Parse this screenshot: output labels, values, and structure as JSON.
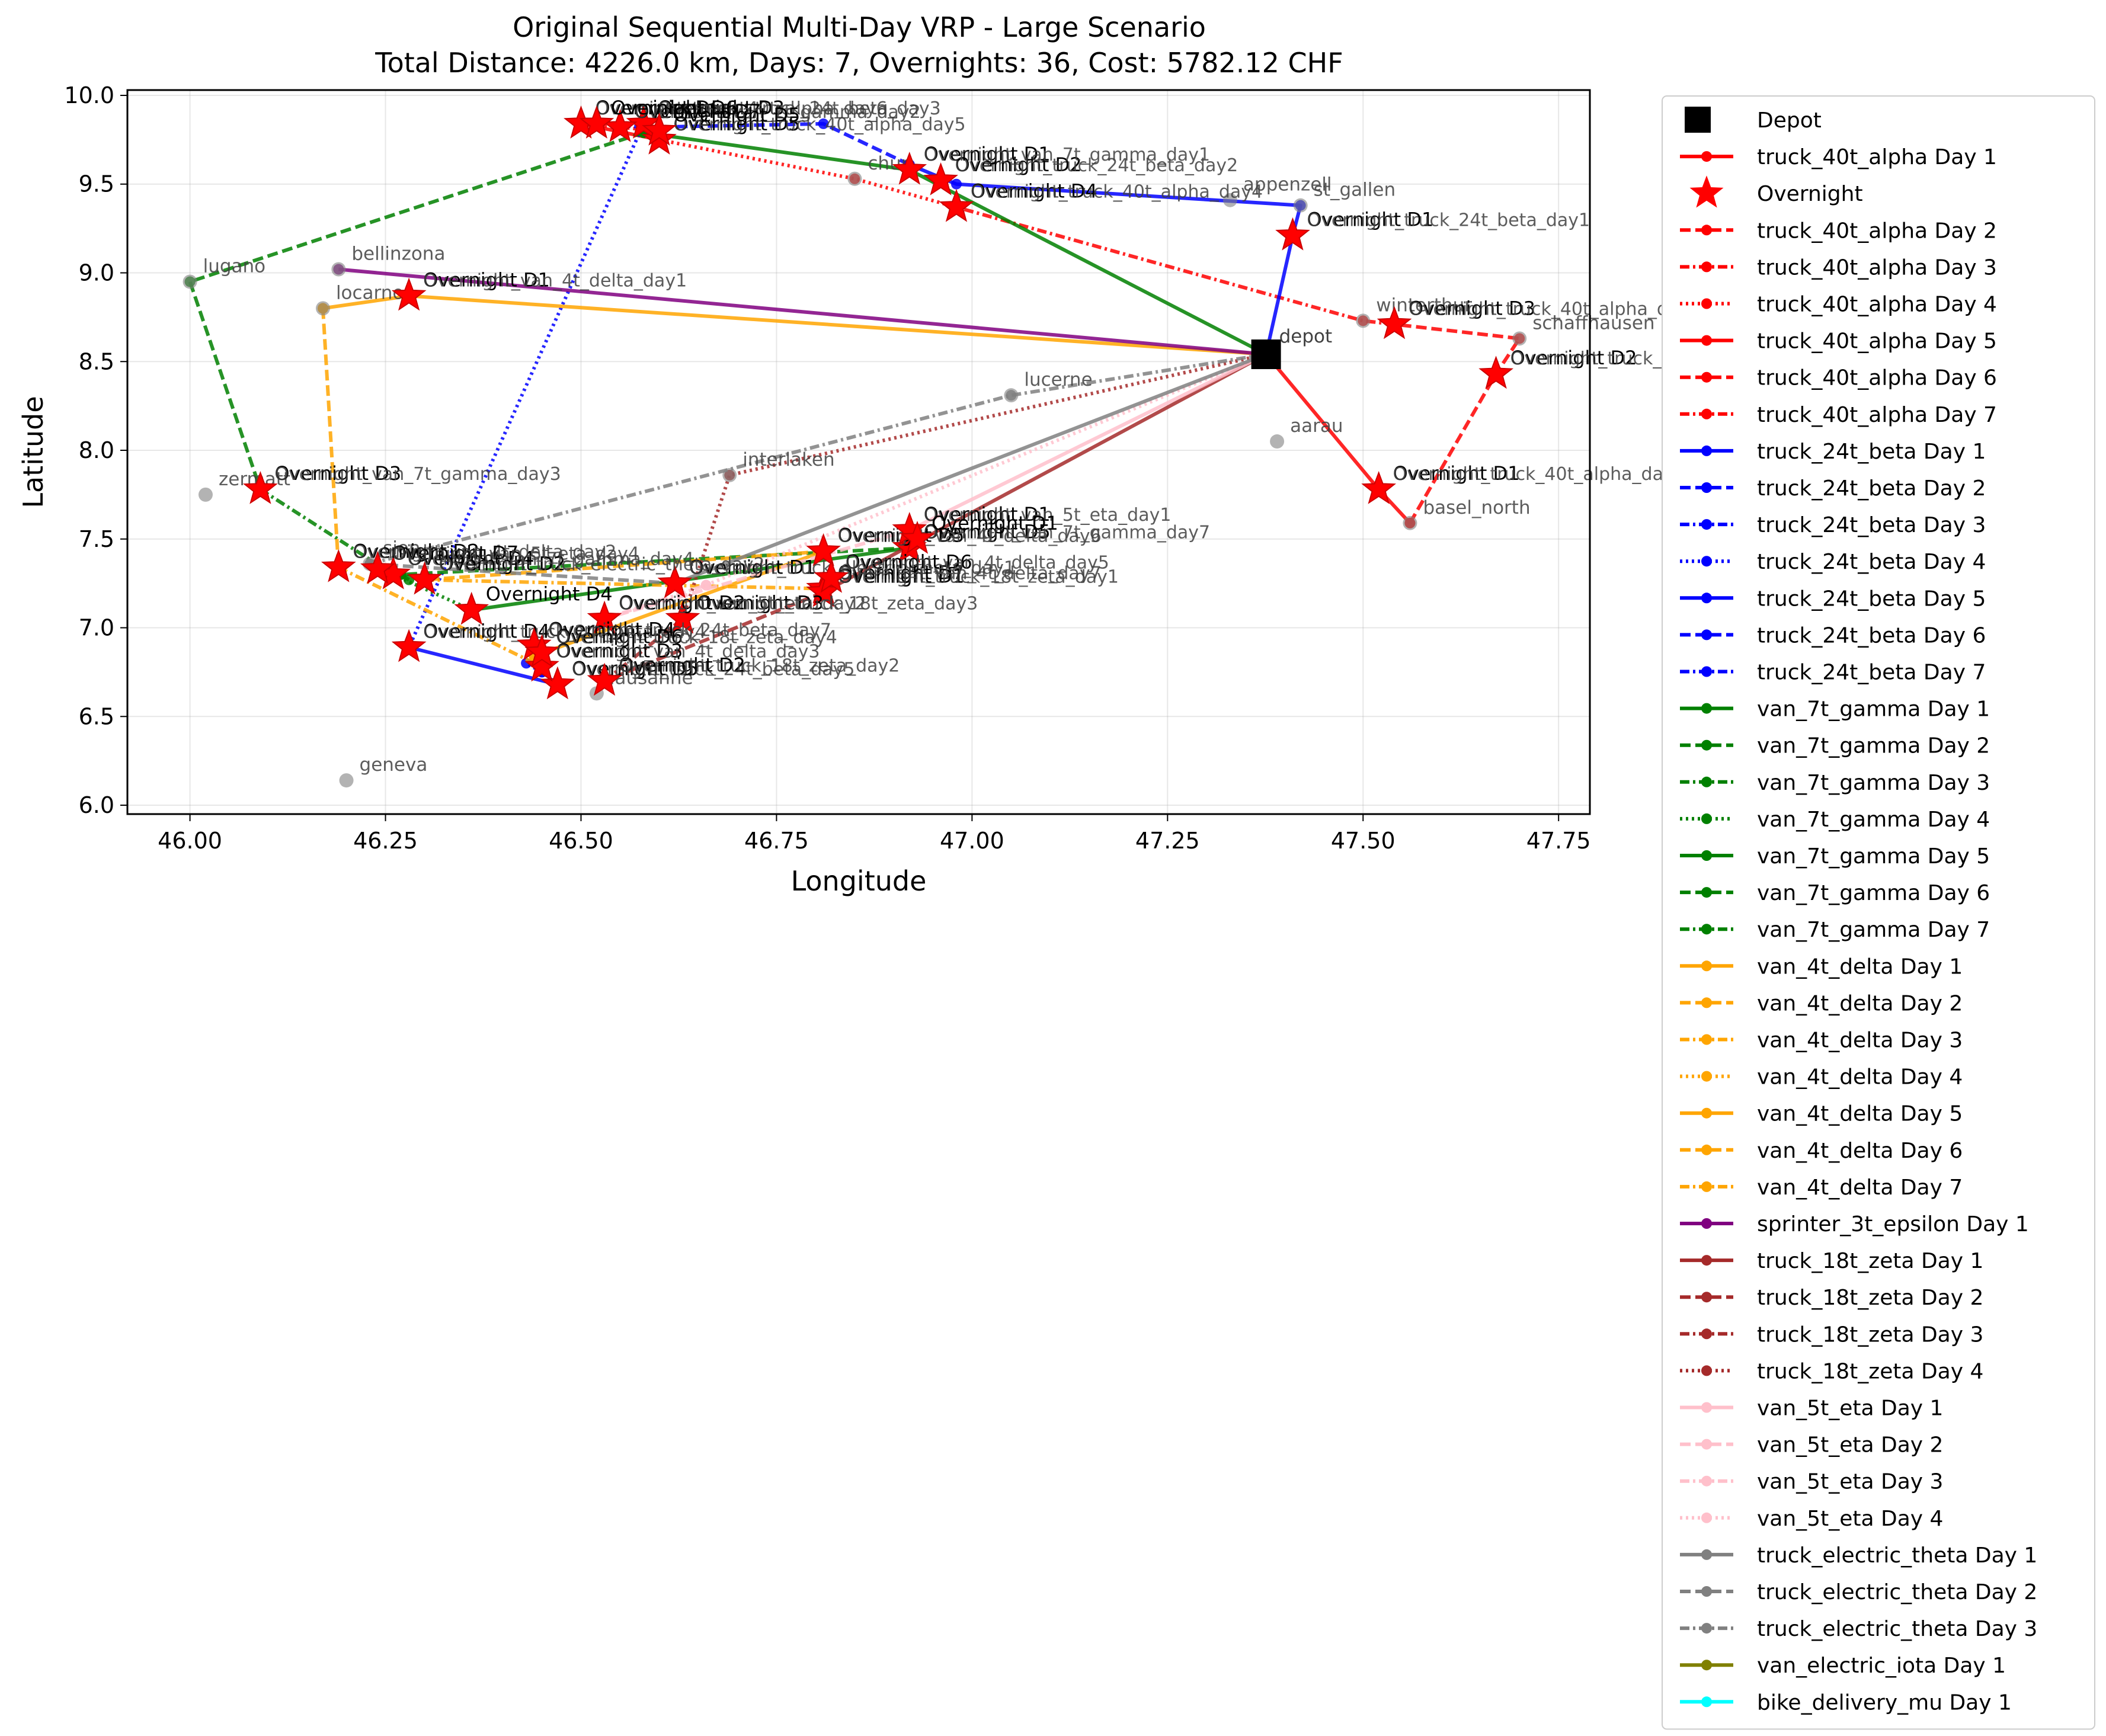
{
  "chart_data": {
    "type": "line",
    "title": "Original Sequential Multi-Day VRP - Large Scenario",
    "subtitle": "Total Distance: 4226.0 km, Days: 7, Overnights: 36, Cost: 5782.12 CHF",
    "xlabel": "Longitude",
    "ylabel": "Latitude",
    "xlim": [
      45.92,
      47.79
    ],
    "ylim": [
      5.95,
      10.03
    ],
    "xticks": [
      "46.00",
      "46.25",
      "46.50",
      "46.75",
      "47.00",
      "47.25",
      "47.50",
      "47.75"
    ],
    "yticks": [
      "6.0",
      "6.5",
      "7.0",
      "7.5",
      "8.0",
      "8.5",
      "9.0",
      "9.5",
      "10.0"
    ],
    "grid": true,
    "legend_position": "outside right",
    "depot": {
      "x": 47.376,
      "y": 8.541,
      "label": "depot",
      "legend": "Depot"
    },
    "cities": [
      {
        "name": "lucerne",
        "x": 47.05,
        "y": 8.31
      },
      {
        "name": "aarau",
        "x": 47.39,
        "y": 8.05
      },
      {
        "name": "lugano",
        "x": 46.0,
        "y": 8.95
      },
      {
        "name": "bellinzona",
        "x": 46.19,
        "y": 9.02
      },
      {
        "name": "locarno",
        "x": 46.17,
        "y": 8.8
      },
      {
        "name": "zermatt",
        "x": 46.02,
        "y": 7.75
      },
      {
        "name": "interlaken",
        "x": 46.69,
        "y": 7.86
      },
      {
        "name": "chur",
        "x": 46.85,
        "y": 9.53
      },
      {
        "name": "appenzell",
        "x": 47.33,
        "y": 9.41
      },
      {
        "name": "st_gallen",
        "x": 47.42,
        "y": 9.38
      },
      {
        "name": "winterthur",
        "x": 47.5,
        "y": 8.73
      },
      {
        "name": "schaffhausen",
        "x": 47.7,
        "y": 8.63
      },
      {
        "name": "basel_north",
        "x": 47.56,
        "y": 7.59
      },
      {
        "name": "sion",
        "x": 46.23,
        "y": 7.36
      },
      {
        "name": "lausanne",
        "x": 46.52,
        "y": 6.63
      },
      {
        "name": "geneva",
        "x": 46.2,
        "y": 6.14
      }
    ],
    "series": [
      {
        "name": "truck_40t_alpha Day 1",
        "color": "#ff0000",
        "dash": "solid",
        "points": [
          [
            47.376,
            8.541
          ],
          [
            47.52,
            7.78
          ],
          [
            47.56,
            7.59
          ]
        ]
      },
      {
        "name": "truck_40t_alpha Day 2",
        "color": "#ff0000",
        "dash": "dashed",
        "points": [
          [
            47.56,
            7.59
          ],
          [
            47.67,
            8.43
          ],
          [
            47.7,
            8.63
          ],
          [
            47.54,
            8.71
          ]
        ]
      },
      {
        "name": "truck_40t_alpha Day 3",
        "color": "#ff0000",
        "dash": "dashdot",
        "points": [
          [
            47.54,
            8.71
          ],
          [
            47.5,
            8.73
          ],
          [
            46.98,
            9.37
          ]
        ]
      },
      {
        "name": "truck_40t_alpha Day 4",
        "color": "#ff0000",
        "dash": "dotted",
        "points": [
          [
            46.98,
            9.37
          ],
          [
            46.85,
            9.53
          ],
          [
            46.6,
            9.75
          ]
        ]
      },
      {
        "name": "truck_40t_alpha Day 5",
        "color": "#ff0000",
        "dash": "solid",
        "points": [
          [
            46.6,
            9.75
          ],
          [
            46.5,
            9.84
          ]
        ]
      },
      {
        "name": "truck_40t_alpha Day 6",
        "color": "#ff0000",
        "dash": "dashed",
        "points": [
          [
            46.5,
            9.84
          ],
          [
            46.55,
            9.82
          ]
        ]
      },
      {
        "name": "truck_40t_alpha Day 7",
        "color": "#ff0000",
        "dash": "dashdot",
        "points": [
          [
            46.55,
            9.82
          ],
          [
            46.6,
            9.8
          ]
        ]
      },
      {
        "name": "truck_24t_beta Day 1",
        "color": "#0000ff",
        "dash": "solid",
        "points": [
          [
            47.376,
            8.541
          ],
          [
            47.41,
            9.21
          ],
          [
            47.42,
            9.38
          ],
          [
            46.98,
            9.5
          ],
          [
            46.92,
            9.61
          ]
        ]
      },
      {
        "name": "truck_24t_beta Day 2",
        "color": "#0000ff",
        "dash": "dashed",
        "points": [
          [
            46.92,
            9.61
          ],
          [
            46.81,
            9.84
          ],
          [
            46.58,
            9.82
          ]
        ]
      },
      {
        "name": "truck_24t_beta Day 3",
        "color": "#0000ff",
        "dash": "dashdot",
        "points": [
          [
            46.58,
            9.82
          ],
          [
            46.55,
            9.83
          ]
        ]
      },
      {
        "name": "truck_24t_beta Day 4",
        "color": "#0000ff",
        "dash": "dotted",
        "points": [
          [
            46.58,
            9.84
          ],
          [
            46.28,
            6.89
          ]
        ]
      },
      {
        "name": "truck_24t_beta Day 5",
        "color": "#0000ff",
        "dash": "solid",
        "points": [
          [
            46.28,
            6.89
          ],
          [
            46.47,
            6.68
          ]
        ]
      },
      {
        "name": "truck_24t_beta Day 6",
        "color": "#0000ff",
        "dash": "dashed",
        "points": [
          [
            46.47,
            6.68
          ],
          [
            46.45,
            6.75
          ]
        ]
      },
      {
        "name": "truck_24t_beta Day 7",
        "color": "#0000ff",
        "dash": "dashdot",
        "points": [
          [
            46.45,
            6.75
          ],
          [
            46.43,
            6.8
          ]
        ]
      },
      {
        "name": "van_7t_gamma Day 1",
        "color": "#008000",
        "dash": "solid",
        "points": [
          [
            47.376,
            8.541
          ],
          [
            46.92,
            9.58
          ],
          [
            46.58,
            9.79
          ]
        ]
      },
      {
        "name": "van_7t_gamma Day 2",
        "color": "#008000",
        "dash": "dashed",
        "points": [
          [
            46.58,
            9.79
          ],
          [
            46.0,
            8.95
          ],
          [
            46.09,
            7.78
          ]
        ]
      },
      {
        "name": "van_7t_gamma Day 3",
        "color": "#008000",
        "dash": "dashdot",
        "points": [
          [
            46.09,
            7.78
          ],
          [
            46.26,
            7.3
          ]
        ]
      },
      {
        "name": "van_7t_gamma Day 4",
        "color": "#008000",
        "dash": "dotted",
        "points": [
          [
            46.26,
            7.3
          ],
          [
            46.36,
            7.1
          ]
        ]
      },
      {
        "name": "van_7t_gamma Day 5",
        "color": "#008000",
        "dash": "solid",
        "points": [
          [
            46.36,
            7.1
          ],
          [
            46.92,
            7.45
          ]
        ]
      },
      {
        "name": "van_7t_gamma Day 6",
        "color": "#008000",
        "dash": "dashed",
        "points": [
          [
            46.92,
            7.45
          ],
          [
            46.27,
            7.3
          ]
        ]
      },
      {
        "name": "van_7t_gamma Day 7",
        "color": "#008000",
        "dash": "dashdot",
        "points": [
          [
            46.27,
            7.3
          ],
          [
            46.28,
            7.27
          ]
        ]
      },
      {
        "name": "van_4t_delta Day 1",
        "color": "#ffa500",
        "dash": "solid",
        "points": [
          [
            47.376,
            8.541
          ],
          [
            46.28,
            8.87
          ],
          [
            46.17,
            8.8
          ]
        ]
      },
      {
        "name": "van_4t_delta Day 2",
        "color": "#ffa500",
        "dash": "dashed",
        "points": [
          [
            46.17,
            8.8
          ],
          [
            46.19,
            7.34
          ]
        ]
      },
      {
        "name": "van_4t_delta Day 3",
        "color": "#ffa500",
        "dash": "dashdot",
        "points": [
          [
            46.19,
            7.34
          ],
          [
            46.45,
            6.78
          ]
        ]
      },
      {
        "name": "van_4t_delta Day 4",
        "color": "#ffa500",
        "dash": "dotted",
        "points": [
          [
            46.45,
            6.78
          ],
          [
            46.44,
            6.84
          ]
        ]
      },
      {
        "name": "van_4t_delta Day 5",
        "color": "#ffa500",
        "dash": "solid",
        "points": [
          [
            46.44,
            6.84
          ],
          [
            46.81,
            7.43
          ]
        ]
      },
      {
        "name": "van_4t_delta Day 6",
        "color": "#ffa500",
        "dash": "dashed",
        "points": [
          [
            46.81,
            7.43
          ],
          [
            46.3,
            7.27
          ]
        ]
      },
      {
        "name": "van_4t_delta Day 7",
        "color": "#ffa500",
        "dash": "dashdot",
        "points": [
          [
            46.3,
            7.27
          ],
          [
            46.81,
            7.22
          ]
        ]
      },
      {
        "name": "sprinter_3t_epsilon Day 1",
        "color": "#800080",
        "dash": "solid",
        "points": [
          [
            47.376,
            8.541
          ],
          [
            46.19,
            9.02
          ]
        ]
      },
      {
        "name": "truck_18t_zeta Day 1",
        "color": "#a52a2a",
        "dash": "solid",
        "points": [
          [
            47.376,
            8.541
          ],
          [
            46.81,
            7.2
          ]
        ]
      },
      {
        "name": "truck_18t_zeta Day 2",
        "color": "#a52a2a",
        "dash": "dashed",
        "points": [
          [
            46.81,
            7.2
          ],
          [
            46.53,
            6.7
          ]
        ]
      },
      {
        "name": "truck_18t_zeta Day 3",
        "color": "#a52a2a",
        "dash": "dashdot",
        "points": [
          [
            46.53,
            6.7
          ],
          [
            46.63,
            7.05
          ]
        ]
      },
      {
        "name": "truck_18t_zeta Day 4",
        "color": "#a52a2a",
        "dash": "dotted",
        "points": [
          [
            46.63,
            7.05
          ],
          [
            46.69,
            7.86
          ],
          [
            47.376,
            8.541
          ]
        ]
      },
      {
        "name": "van_5t_eta Day 1",
        "color": "#ffc0cb",
        "dash": "solid",
        "points": [
          [
            47.376,
            8.541
          ],
          [
            46.92,
            7.55
          ]
        ]
      },
      {
        "name": "van_5t_eta Day 2",
        "color": "#ffc0cb",
        "dash": "dashed",
        "points": [
          [
            46.92,
            7.55
          ],
          [
            46.53,
            7.05
          ]
        ]
      },
      {
        "name": "van_5t_eta Day 3",
        "color": "#ffc0cb",
        "dash": "dashdot",
        "points": [
          [
            46.53,
            7.05
          ],
          [
            46.66,
            7.24
          ]
        ]
      },
      {
        "name": "van_5t_eta Day 4",
        "color": "#ffc0cb",
        "dash": "dotted",
        "points": [
          [
            46.66,
            7.24
          ],
          [
            47.376,
            8.541
          ]
        ]
      },
      {
        "name": "truck_electric_theta Day 1",
        "color": "#808080",
        "dash": "solid",
        "points": [
          [
            47.376,
            8.541
          ],
          [
            46.62,
            7.25
          ]
        ]
      },
      {
        "name": "truck_electric_theta Day 2",
        "color": "#808080",
        "dash": "dashed",
        "points": [
          [
            46.62,
            7.25
          ],
          [
            46.23,
            7.36
          ]
        ]
      },
      {
        "name": "truck_electric_theta Day 3",
        "color": "#808080",
        "dash": "dashdot",
        "points": [
          [
            46.23,
            7.36
          ],
          [
            47.05,
            8.31
          ],
          [
            47.376,
            8.541
          ]
        ]
      },
      {
        "name": "van_electric_iota Day 1",
        "color": "#808000",
        "dash": "solid",
        "points": [
          [
            47.376,
            8.541
          ],
          [
            47.38,
            8.55
          ]
        ]
      },
      {
        "name": "bike_delivery_mu Day 1",
        "color": "#00ffff",
        "dash": "solid",
        "points": [
          [
            47.376,
            8.541
          ],
          [
            47.38,
            8.55
          ]
        ]
      }
    ],
    "overnight_legend": "Overnight",
    "overnights": [
      {
        "x": 47.52,
        "y": 7.78,
        "labels": [
          "Overnight D1",
          "Overnight_truck_40t_alpha_day1"
        ]
      },
      {
        "x": 47.67,
        "y": 8.43,
        "labels": [
          "Overnight D2",
          "Overnight_truck_40t_alpha_day2"
        ]
      },
      {
        "x": 47.54,
        "y": 8.71,
        "labels": [
          "Overnight D3",
          "Overnight_truck_40t_alpha_day3"
        ]
      },
      {
        "x": 46.98,
        "y": 9.37,
        "labels": [
          "Overnight D4",
          "Overnight_truck_40t_alpha_day4"
        ]
      },
      {
        "x": 46.6,
        "y": 9.75,
        "labels": [
          "Overnight D5",
          "Overnight_truck_40t_alpha_day5"
        ]
      },
      {
        "x": 46.5,
        "y": 9.84,
        "labels": [
          "Overnight D6",
          "Overnight_truck_40t_alpha_day6"
        ]
      },
      {
        "x": 47.41,
        "y": 9.21,
        "labels": [
          "Overnight D1",
          "Overnight_truck_24t_beta_day1"
        ]
      },
      {
        "x": 46.96,
        "y": 9.52,
        "labels": [
          "Overnight D2",
          "Overnight_truck_24t_beta_day2"
        ]
      },
      {
        "x": 46.58,
        "y": 9.84,
        "labels": [
          "Overnight D3",
          "Overnight_truck_24t_beta_day3"
        ]
      },
      {
        "x": 46.28,
        "y": 6.89,
        "labels": [
          "Overnight D4",
          "Overnight_truck_24t_beta_day4"
        ]
      },
      {
        "x": 46.47,
        "y": 6.68,
        "labels": [
          "Overnight D5",
          "Overnight_truck_24t_beta_day5"
        ]
      },
      {
        "x": 46.92,
        "y": 9.58,
        "labels": [
          "Overnight D1",
          "Overnight_van_7t_gamma_day1"
        ]
      },
      {
        "x": 46.09,
        "y": 7.78,
        "labels": [
          "Overnight D3",
          "Overnight_van_7t_gamma_day3"
        ]
      },
      {
        "x": 46.26,
        "y": 7.3,
        "labels": [
          "Overnight D4",
          "Overnight_van_7t_gamma_day4"
        ]
      },
      {
        "x": 46.36,
        "y": 7.1,
        "labels": [
          "Overnight D4"
        ]
      },
      {
        "x": 46.92,
        "y": 7.45,
        "labels": [
          "Overnight D5",
          "Overnight_van_7t_gamma_day7"
        ]
      },
      {
        "x": 46.28,
        "y": 8.87,
        "labels": [
          "Overnight D1",
          "Overnight_van_4t_delta_day1"
        ]
      },
      {
        "x": 46.19,
        "y": 7.34,
        "labels": [
          "Overnight D2",
          "Overnight_van_4t_delta_day2"
        ]
      },
      {
        "x": 46.45,
        "y": 6.78,
        "labels": [
          "Overnight D3",
          "Overnight_van_4t_delta_day3"
        ]
      },
      {
        "x": 46.81,
        "y": 7.43,
        "labels": [
          "Overnight D5",
          "Overnight_van_4t_delta_day6"
        ]
      },
      {
        "x": 46.81,
        "y": 7.22,
        "labels": [
          "Overnight D7",
          "Overnight_van_4t_delta_day7"
        ]
      },
      {
        "x": 46.81,
        "y": 7.2,
        "labels": [
          "Overnight D1",
          "Overnight_truck_18t_zeta_day1"
        ]
      },
      {
        "x": 46.53,
        "y": 6.7,
        "labels": [
          "Overnight D2",
          "Overnight_truck_18t_zeta_day2"
        ]
      },
      {
        "x": 46.63,
        "y": 7.05,
        "labels": [
          "Overnight D3",
          "Overnight_truck_18t_zeta_day3"
        ]
      },
      {
        "x": 46.92,
        "y": 7.55,
        "labels": [
          "Overnight D1",
          "Overnight_van_5t_eta_day1"
        ]
      },
      {
        "x": 46.53,
        "y": 7.05,
        "labels": [
          "Overnight D2",
          "Overnight_van_5t_eta_day2"
        ]
      },
      {
        "x": 46.62,
        "y": 7.25,
        "labels": [
          "Overnight D1",
          "Overnight_truck_electric_theta_day1"
        ]
      },
      {
        "x": 46.3,
        "y": 7.27,
        "labels": [
          "Overnight D2",
          "Overnight_truck_electric_theta_day2"
        ]
      },
      {
        "x": 46.44,
        "y": 6.9,
        "labels": [
          "Overnight D4",
          "Overnight_truck_24t_beta_day7"
        ]
      },
      {
        "x": 46.45,
        "y": 6.86,
        "labels": [
          "Overnight D6",
          "Overnight_truck_18t_zeta_day4"
        ]
      },
      {
        "x": 46.55,
        "y": 9.82,
        "labels": [
          "Overnight D7",
          "Overnight_van_7t_gamma_day2"
        ]
      },
      {
        "x": 46.52,
        "y": 9.84,
        "labels": [
          "Overnight D6"
        ]
      },
      {
        "x": 46.6,
        "y": 9.8,
        "labels": [
          "Overnight D5"
        ]
      },
      {
        "x": 46.82,
        "y": 7.28,
        "labels": [
          "Overnight D6",
          "Overnight_van_4t_delta_day5"
        ]
      },
      {
        "x": 46.93,
        "y": 7.5,
        "labels": [
          "Overnight D1"
        ]
      },
      {
        "x": 46.24,
        "y": 7.33,
        "labels": [
          "Overnight D7",
          "Overnight_van_5t_eta_day4"
        ]
      }
    ]
  }
}
